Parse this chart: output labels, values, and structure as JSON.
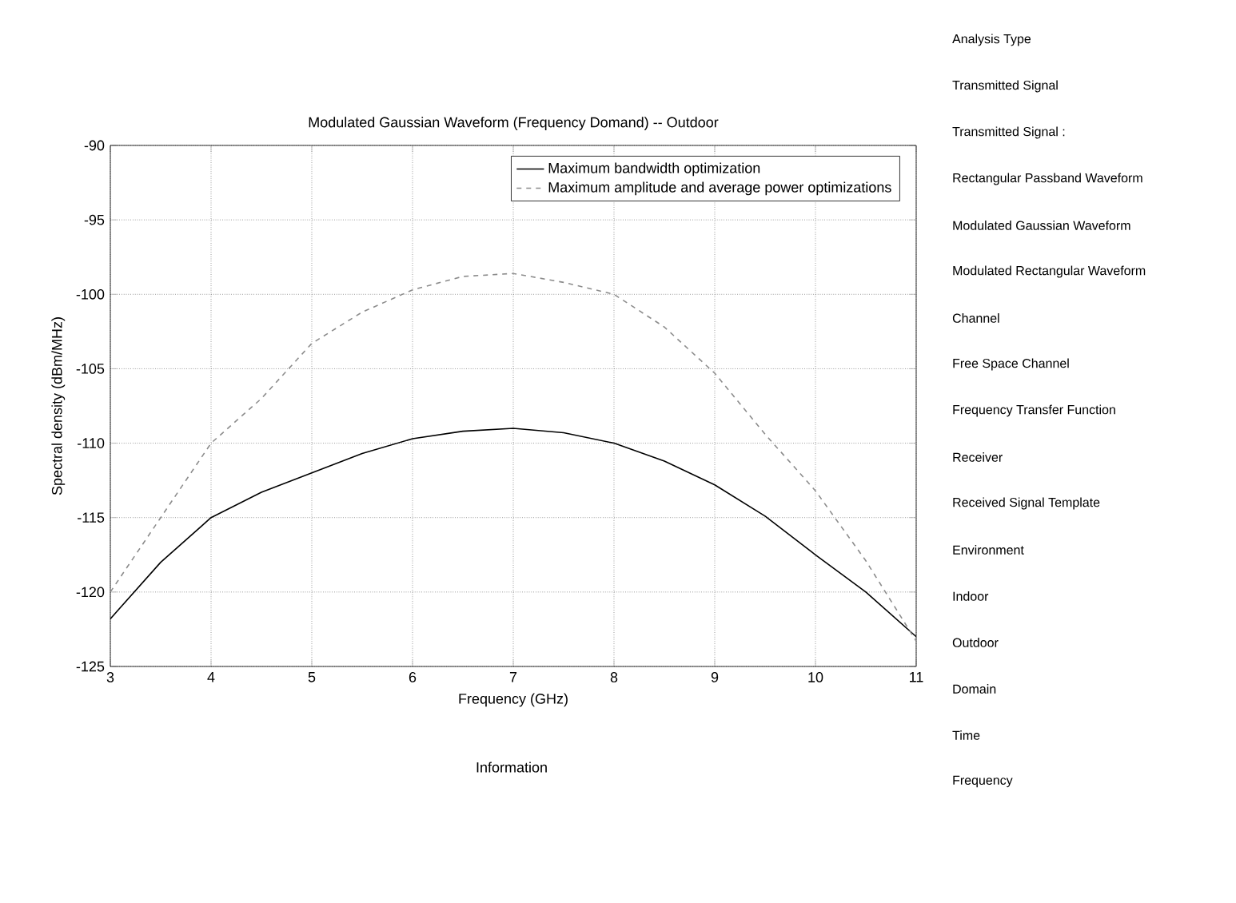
{
  "chart_data": {
    "type": "line",
    "title": "Modulated Gaussian Waveform (Frequency Domand) -- Outdoor",
    "xlabel": "Frequency (GHz)",
    "ylabel": "Spectral density (dBm/MHz)",
    "x": [
      3,
      3.5,
      4,
      4.5,
      5,
      5.5,
      6,
      6.5,
      7,
      7.5,
      8,
      8.5,
      9,
      9.5,
      10,
      10.5,
      11
    ],
    "series": [
      {
        "name": "Maximum bandwidth optimization",
        "color": "#000000",
        "line_style": "solid",
        "values": [
          -121.8,
          -118,
          -115,
          -113.3,
          -112,
          -110.7,
          -109.7,
          -109.2,
          -109,
          -109.3,
          -110,
          -111.2,
          -112.8,
          -114.9,
          -117.5,
          -120,
          -123
        ]
      },
      {
        "name": "Maximum amplitude and average power optimizations",
        "color": "#8c8c8c",
        "line_style": "dashed",
        "values": [
          -120,
          -115,
          -110,
          -107,
          -103.3,
          -101.2,
          -99.7,
          -98.8,
          -98.6,
          -99.2,
          -100,
          -102.2,
          -105.3,
          -109.4,
          -113.2,
          -117.9,
          -123.3
        ]
      }
    ],
    "xlim": [
      3,
      11
    ],
    "xticks": [
      3,
      4,
      5,
      6,
      7,
      8,
      9,
      10,
      11
    ],
    "ylim": [
      -125,
      -90
    ],
    "yticks": [
      -125,
      -120,
      -115,
      -110,
      -105,
      -100,
      -95,
      -90
    ],
    "grid": true,
    "legend": "top right",
    "marker": "none",
    "annotations": [
      "Analysis Type",
      "Transmitted Signal",
      "Transmitted Signal :",
      "Rectangular Passband Waveform",
      "Modulated Gaussian Waveform",
      "Modulated Rectangular Waveform",
      "Channel",
      "Free Space Channel",
      "Frequency Transfer Function",
      "Receiver",
      "Received Signal Template",
      "Environment",
      "Indoor",
      "Outdoor",
      "Domain",
      "Time",
      "Frequency",
      "Information"
    ]
  }
}
